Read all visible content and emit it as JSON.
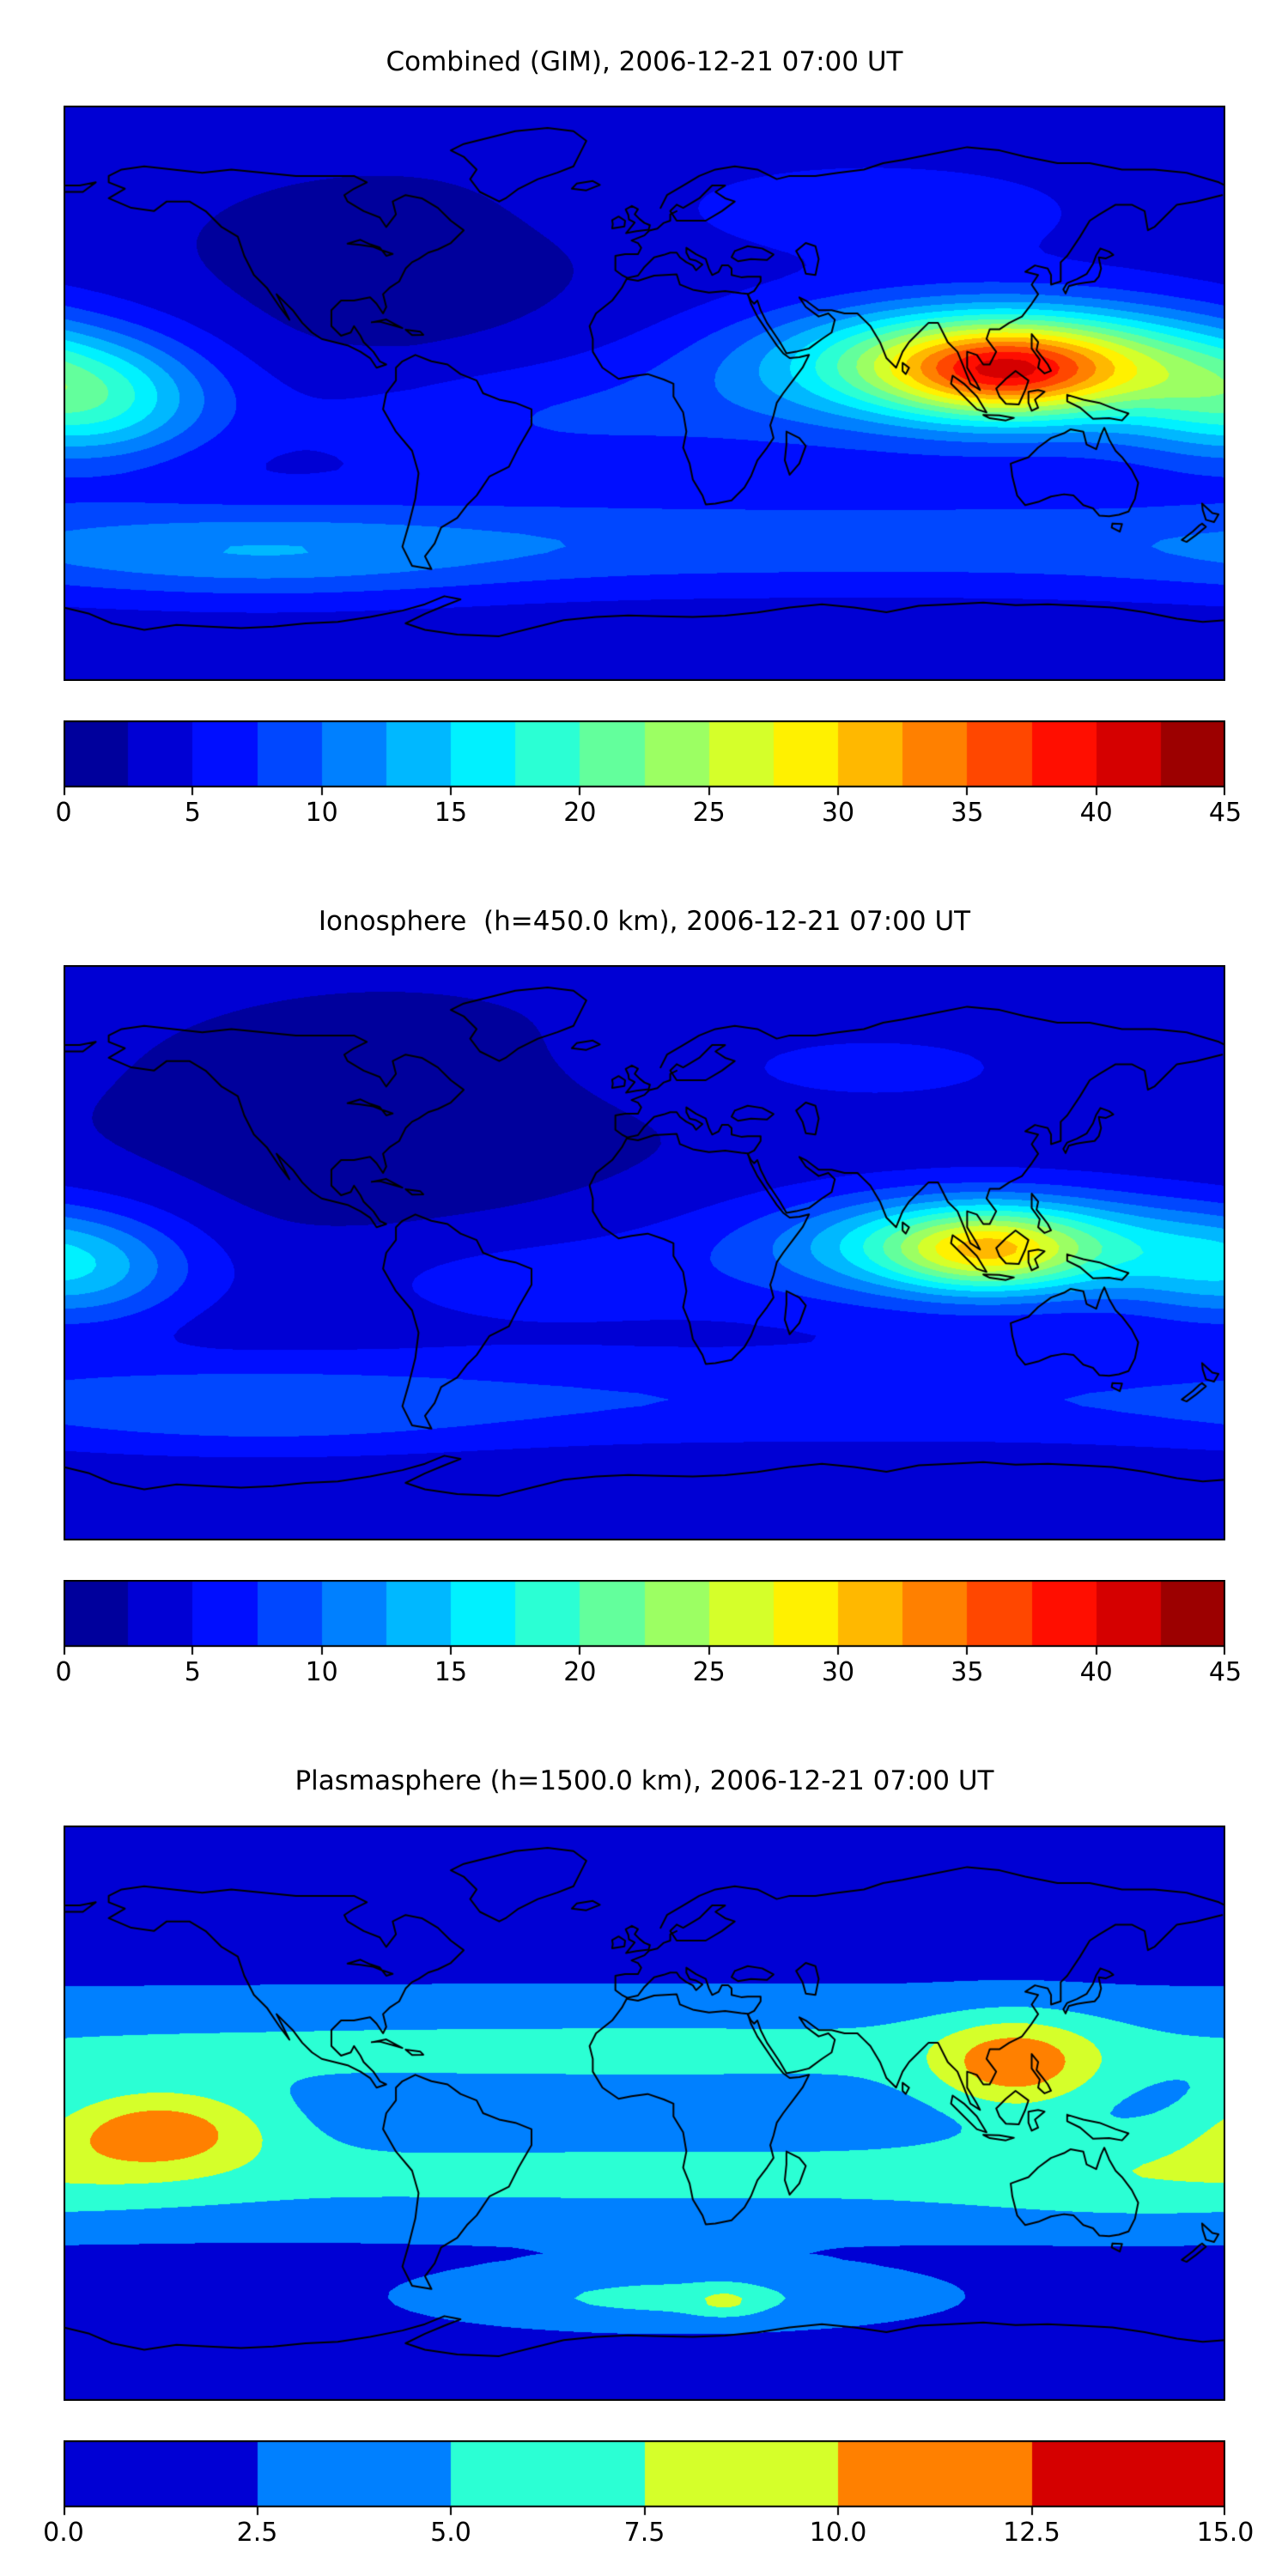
{
  "figure": {
    "background": "#ffffff",
    "text_color": "#000000",
    "coastline_color": "#000000"
  },
  "chart_data": [
    {
      "type": "heatmap",
      "title": "Combined (GIM), 2006-12-21 07:00 UT",
      "projection": "equirectangular",
      "lon_range": [
        -180,
        180
      ],
      "lat_range": [
        -90,
        90
      ],
      "colormap": "jet",
      "grid": false,
      "legend_position": "bottom-colorbar",
      "levels": {
        "min": 0,
        "max": 45,
        "step": 2.5
      },
      "colorbar_ticks": [
        "0",
        "5",
        "10",
        "15",
        "20",
        "25",
        "30",
        "35",
        "40",
        "45"
      ],
      "field": {
        "background": 3.2,
        "blobs": [
          {
            "lon": 112,
            "lat": 10,
            "amp": 20,
            "sx": 42,
            "sy": 11
          },
          {
            "lon": 112,
            "lat": 5,
            "amp": 10,
            "sx": 22,
            "sy": 9
          },
          {
            "lon": 108,
            "lat": 6,
            "amp": 9,
            "sx": 65,
            "sy": 18
          },
          {
            "lon": -172,
            "lat": -3,
            "amp": 12,
            "sx": 26,
            "sy": 13
          },
          {
            "lon": 0,
            "lat": -47,
            "amp": 6,
            "sx": 400,
            "sy": 11
          },
          {
            "lon": -120,
            "lat": -52,
            "amp": 4,
            "sx": 55,
            "sy": 10
          },
          {
            "lon": -40,
            "lat": -8,
            "amp": 4.5,
            "sx": 55,
            "sy": 14
          },
          {
            "lon": 70,
            "lat": 58,
            "amp": 4,
            "sx": 45,
            "sy": 10
          },
          {
            "lon": -80,
            "lat": 25,
            "amp": -2,
            "sx": 55,
            "sy": 30
          }
        ]
      }
    },
    {
      "type": "heatmap",
      "title": "Ionosphere  (h=450.0 km), 2006-12-21 07:00 UT",
      "projection": "equirectangular",
      "lon_range": [
        -180,
        180
      ],
      "lat_range": [
        -90,
        90
      ],
      "colormap": "jet",
      "grid": false,
      "legend_position": "bottom-colorbar",
      "levels": {
        "min": 0,
        "max": 45,
        "step": 2.5
      },
      "colorbar_ticks": [
        "0",
        "5",
        "10",
        "15",
        "20",
        "25",
        "30",
        "35",
        "40",
        "45"
      ],
      "field": {
        "background": 2.8,
        "blobs": [
          {
            "lon": 107,
            "lat": 3,
            "amp": 13,
            "sx": 38,
            "sy": 10
          },
          {
            "lon": 106,
            "lat": 0,
            "amp": 9,
            "sx": 19,
            "sy": 8
          },
          {
            "lon": 105,
            "lat": 0,
            "amp": 7,
            "sx": 62,
            "sy": 15
          },
          {
            "lon": -175,
            "lat": -5,
            "amp": 9,
            "sx": 24,
            "sy": 12
          },
          {
            "lon": 0,
            "lat": -46,
            "amp": 4.5,
            "sx": 400,
            "sy": 11
          },
          {
            "lon": -120,
            "lat": -50,
            "amp": 3,
            "sx": 55,
            "sy": 10
          },
          {
            "lon": -45,
            "lat": -8,
            "amp": 3.5,
            "sx": 50,
            "sy": 13
          },
          {
            "lon": 70,
            "lat": 58,
            "amp": 3,
            "sx": 45,
            "sy": 10
          },
          {
            "lon": -80,
            "lat": 25,
            "amp": -1.8,
            "sx": 55,
            "sy": 30
          }
        ]
      }
    },
    {
      "type": "heatmap",
      "title": "Plasmasphere (h=1500.0 km), 2006-12-21 07:00 UT",
      "projection": "equirectangular",
      "lon_range": [
        -180,
        180
      ],
      "lat_range": [
        -90,
        90
      ],
      "colormap": "jet",
      "grid": false,
      "legend_position": "bottom-colorbar",
      "levels": {
        "min": 0,
        "max": 15,
        "step": 2.5
      },
      "colorbar_ticks": [
        "0.0",
        "2.5",
        "5.0",
        "7.5",
        "10.0",
        "12.5",
        "15.0"
      ],
      "field": {
        "background": 1.3,
        "blobs": [
          {
            "lon": 0,
            "lat": 20,
            "amp": 4.2,
            "sx": 400,
            "sy": 13
          },
          {
            "lon": 0,
            "lat": -20,
            "amp": 4.2,
            "sx": 400,
            "sy": 13
          },
          {
            "lon": -150,
            "lat": -5,
            "amp": 7.5,
            "sx": 24,
            "sy": 9
          },
          {
            "lon": 115,
            "lat": 15,
            "amp": 7,
            "sx": 18,
            "sy": 10
          },
          {
            "lon": 160,
            "lat": -18,
            "amp": 2.2,
            "sx": 40,
            "sy": 11
          },
          {
            "lon": 10,
            "lat": -58,
            "amp": 4.3,
            "sx": 55,
            "sy": 7
          },
          {
            "lon": 25,
            "lat": -59,
            "amp": 3,
            "sx": 7,
            "sy": 3
          }
        ]
      }
    }
  ]
}
